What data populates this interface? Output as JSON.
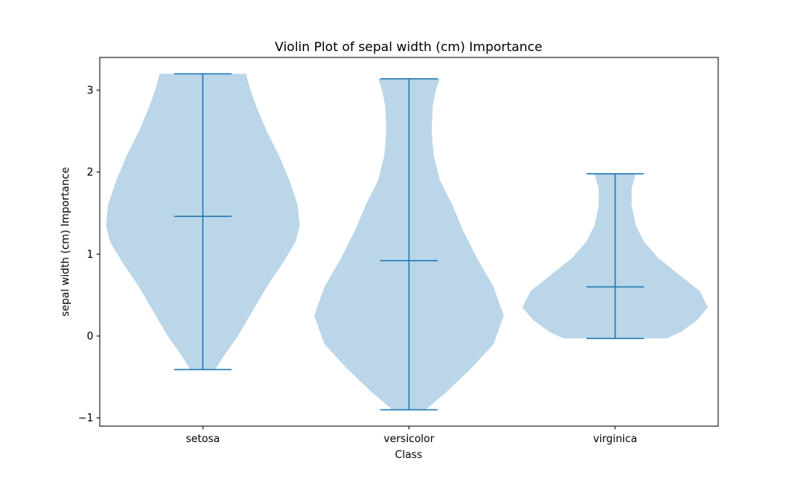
{
  "chart_data": {
    "type": "violin",
    "title": "Violin Plot of sepal width (cm) Importance",
    "xlabel": "Class",
    "ylabel": "sepal width (cm) Importance",
    "categories": [
      "setosa",
      "versicolor",
      "virginica"
    ],
    "ylim": [
      -1.1,
      3.4
    ],
    "yticks": [
      -1,
      0,
      1,
      2,
      3
    ],
    "ytick_labels": [
      "−1",
      "0",
      "1",
      "2",
      "3"
    ],
    "grid": false,
    "colors": {
      "fill": "#1f77b4",
      "fill_opacity": 0.3,
      "lines": "#1f77b4"
    },
    "violins": [
      {
        "category": "setosa",
        "min": -0.41,
        "max": 3.2,
        "mean": 1.46,
        "density": [
          {
            "y": -0.41,
            "w": 0.12
          },
          {
            "y": -0.25,
            "w": 0.2
          },
          {
            "y": 0.0,
            "w": 0.34
          },
          {
            "y": 0.3,
            "w": 0.48
          },
          {
            "y": 0.6,
            "w": 0.62
          },
          {
            "y": 0.9,
            "w": 0.78
          },
          {
            "y": 1.15,
            "w": 0.9
          },
          {
            "y": 1.35,
            "w": 0.94
          },
          {
            "y": 1.6,
            "w": 0.92
          },
          {
            "y": 1.9,
            "w": 0.84
          },
          {
            "y": 2.2,
            "w": 0.74
          },
          {
            "y": 2.5,
            "w": 0.62
          },
          {
            "y": 2.8,
            "w": 0.52
          },
          {
            "y": 3.05,
            "w": 0.45
          },
          {
            "y": 3.2,
            "w": 0.42
          }
        ]
      },
      {
        "category": "versicolor",
        "min": -0.9,
        "max": 3.14,
        "mean": 0.92,
        "density": [
          {
            "y": -0.9,
            "w": 0.16
          },
          {
            "y": -0.7,
            "w": 0.35
          },
          {
            "y": -0.4,
            "w": 0.6
          },
          {
            "y": -0.1,
            "w": 0.82
          },
          {
            "y": 0.25,
            "w": 0.92
          },
          {
            "y": 0.6,
            "w": 0.82
          },
          {
            "y": 0.95,
            "w": 0.66
          },
          {
            "y": 1.3,
            "w": 0.52
          },
          {
            "y": 1.6,
            "w": 0.42
          },
          {
            "y": 1.9,
            "w": 0.3
          },
          {
            "y": 2.2,
            "w": 0.24
          },
          {
            "y": 2.5,
            "w": 0.22
          },
          {
            "y": 2.8,
            "w": 0.23
          },
          {
            "y": 3.0,
            "w": 0.26
          },
          {
            "y": 3.14,
            "w": 0.3
          }
        ]
      },
      {
        "category": "virginica",
        "min": -0.03,
        "max": 1.98,
        "mean": 0.6,
        "density": [
          {
            "y": -0.03,
            "w": 0.5
          },
          {
            "y": 0.05,
            "w": 0.64
          },
          {
            "y": 0.2,
            "w": 0.8
          },
          {
            "y": 0.35,
            "w": 0.9
          },
          {
            "y": 0.55,
            "w": 0.82
          },
          {
            "y": 0.75,
            "w": 0.62
          },
          {
            "y": 0.95,
            "w": 0.42
          },
          {
            "y": 1.15,
            "w": 0.28
          },
          {
            "y": 1.35,
            "w": 0.2
          },
          {
            "y": 1.6,
            "w": 0.16
          },
          {
            "y": 1.8,
            "w": 0.16
          },
          {
            "y": 1.98,
            "w": 0.2
          }
        ]
      }
    ]
  }
}
